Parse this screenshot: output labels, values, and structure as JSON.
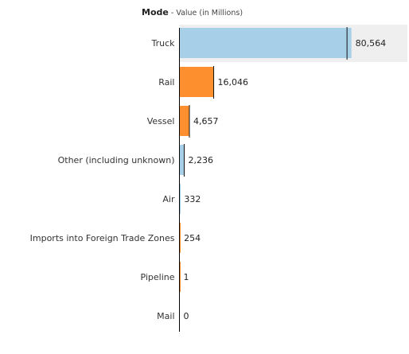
{
  "header": {
    "title": "Mode",
    "separator": " - ",
    "subtitle": "Value (in Millions)"
  },
  "colors": {
    "blue": "#a8cfe8",
    "orange": "#fd8f2f",
    "axis": "#000000",
    "highlight": "#efefef"
  },
  "chart_data": {
    "type": "bar",
    "orientation": "horizontal",
    "title": "Mode",
    "subtitle": "Value (in Millions)",
    "categories": [
      "Truck",
      "Rail",
      "Vessel",
      "Other (including unknown)",
      "Air",
      "Imports into Foreign Trade Zones",
      "Pipeline",
      "Mail"
    ],
    "values": [
      80564,
      16046,
      4657,
      2236,
      332,
      254,
      1,
      0
    ],
    "value_labels": [
      "80,564",
      "16,046",
      "4,657",
      "2,236",
      "332",
      "254",
      "1",
      "0"
    ],
    "bar_colors": [
      "blue",
      "orange",
      "orange",
      "blue",
      "blue",
      "orange",
      "orange",
      "blue"
    ],
    "reference_values": [
      78500,
      16046,
      4657,
      2236,
      332,
      254,
      1,
      0
    ],
    "highlighted_row": "Truck",
    "xlim": [
      0,
      82000
    ],
    "grid": false,
    "legend": "none"
  }
}
